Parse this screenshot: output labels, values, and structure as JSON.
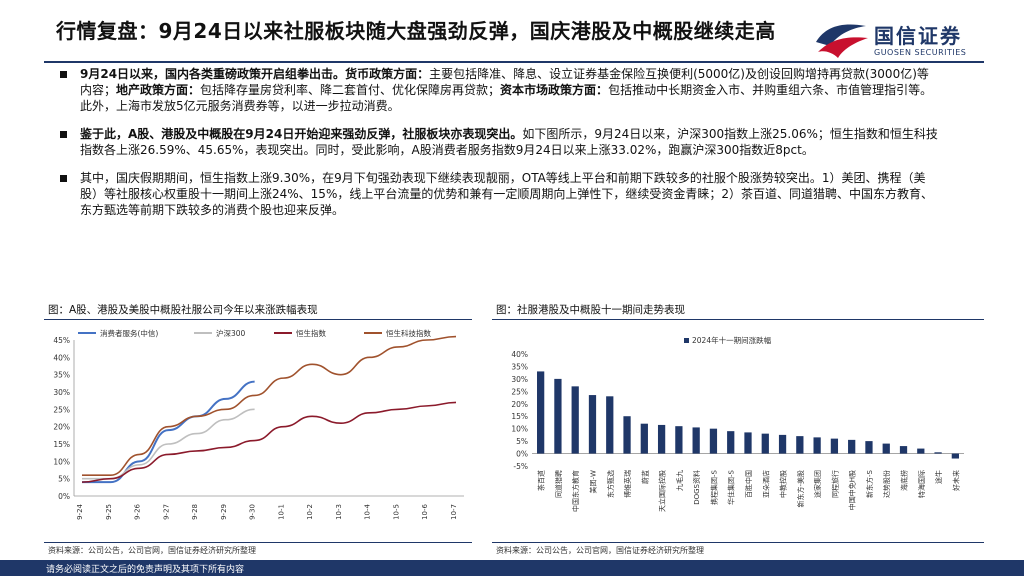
{
  "header": {
    "title": "行情复盘：9月24日以来社服板块随大盘强劲反弹，国庆港股及中概股继续走高",
    "logo_cn": "国信证券",
    "logo_en": "GUOSEN SECURITIES"
  },
  "bullets": [
    {
      "parts": [
        {
          "t": "9月24日以来，国内各类重磅政策开启组拳出击。",
          "b": true
        },
        {
          "t": "货币政策方面：",
          "b": true
        },
        {
          "t": "主要包括降准、降息、设立证券基金保险互换便利(5000亿)及创设回购增持再贷款(3000亿)等内容；",
          "b": false
        },
        {
          "t": "地产政策方面：",
          "b": true
        },
        {
          "t": "包括降存量房贷利率、降二套首付、优化保障房再贷款；",
          "b": false
        },
        {
          "t": "资本市场政策方面：",
          "b": true
        },
        {
          "t": "包括推动中长期资金入市、并购重组六条、市值管理指引等。此外，上海市发放5亿元服务消费券等，以进一步拉动消费。",
          "b": false
        }
      ]
    },
    {
      "parts": [
        {
          "t": "鉴于此，A股、港股及中概股在9月24日开始迎来强劲反弹，社服板块亦表现突出。",
          "b": true
        },
        {
          "t": "如下图所示，9月24日以来，沪深300指数上涨25.06%；恒生指数和恒生科技指数各上涨26.59%、45.65%，表现突出。同时，受此影响，A股消费者服务指数9月24日以来上涨33.02%，跑赢沪深300指数近8pct。",
          "b": false
        }
      ]
    },
    {
      "parts": [
        {
          "t": "其中，国庆假期期间，恒生指数上涨9.30%，在9月下旬强劲表现下继续表现靓丽，OTA等线上平台和前期下跌较多的社服个股涨势较突出。1）美团、携程（美股）等社服核心权重股十一期间上涨24%、15%，线上平台流量的优势和兼有一定顺周期向上弹性下，继续受资金青睐；2）茶百道、同道猎聘、中国东方教育、东方甄选等前期下跌较多的消费个股也迎来反弹。",
          "b": false
        }
      ]
    }
  ],
  "figure_left": {
    "title": "图：A股、港股及美股中概股社服公司今年以来涨跌幅表现",
    "source": "资料来源：公司公告，公司官网，国信证券经济研究所整理"
  },
  "figure_right": {
    "title": "图：社服港股及中概股十一期间走势表现",
    "source": "资料来源：公司公告，公司官网，国信证券经济研究所整理"
  },
  "chart_data": [
    {
      "type": "line",
      "ylim": [
        0,
        45
      ],
      "y_ticks": [
        "0%",
        "5%",
        "10%",
        "15%",
        "20%",
        "25%",
        "30%",
        "35%",
        "40%",
        "45%"
      ],
      "x_ticks": [
        "9-24",
        "9-25",
        "9-26",
        "9-27",
        "9-28",
        "9-29",
        "9-30",
        "10-1",
        "10-2",
        "10-3",
        "10-4",
        "10-5",
        "10-6",
        "10-7"
      ],
      "series": [
        {
          "name": "消费者服务(中信)",
          "color": "#4472c4",
          "values": [
            4,
            4,
            10,
            19,
            23,
            28,
            33,
            null,
            null,
            null,
            null,
            null,
            null,
            null
          ]
        },
        {
          "name": "沪深300",
          "color": "#bfbfbf",
          "values": [
            5,
            5,
            9,
            15,
            18,
            22,
            25,
            null,
            null,
            null,
            null,
            null,
            null,
            null
          ]
        },
        {
          "name": "恒生指数",
          "color": "#8b1a2b",
          "values": [
            4,
            5,
            8,
            12,
            13,
            14,
            16,
            20,
            23,
            21,
            24,
            25,
            26,
            27
          ]
        },
        {
          "name": "恒生科技指数",
          "color": "#a0522d",
          "values": [
            6,
            6,
            12,
            20,
            23,
            25,
            29,
            34,
            38,
            35,
            40,
            43,
            45,
            46
          ]
        }
      ]
    },
    {
      "type": "bar",
      "ylim": [
        -5,
        40
      ],
      "y_ticks": [
        "-5%",
        "0%",
        "5%",
        "10%",
        "15%",
        "20%",
        "25%",
        "30%",
        "35%",
        "40%"
      ],
      "series": [
        {
          "name": "2024年十一期间涨跌幅",
          "color": "#1f3768"
        }
      ],
      "categories": [
        "茶百道",
        "同道猎聘",
        "中国东方教育",
        "美团-W",
        "东方甄选",
        "博维英瑞",
        "蔚蓝",
        "天立国际控股",
        "九毛九",
        "DOGS资料",
        "携程集团-S",
        "华住集团-S",
        "百胜中国",
        "亚朵酒店",
        "中教控股",
        "新东方-美股",
        "途家集团",
        "同程旅行",
        "中国中免H股",
        "新东方-S",
        "达势股份",
        "海底捞",
        "特海国际",
        "途牛",
        "好未来"
      ],
      "values": [
        33,
        30,
        27,
        23.5,
        23,
        15,
        12,
        11.5,
        11,
        10.5,
        10,
        9,
        8.5,
        8,
        7.5,
        7,
        6.5,
        6,
        5.5,
        5,
        4,
        3,
        2,
        0.5,
        -2
      ]
    }
  ],
  "footer": {
    "disclaimer": "请务必阅读正文之后的免责声明及其项下所有内容"
  }
}
